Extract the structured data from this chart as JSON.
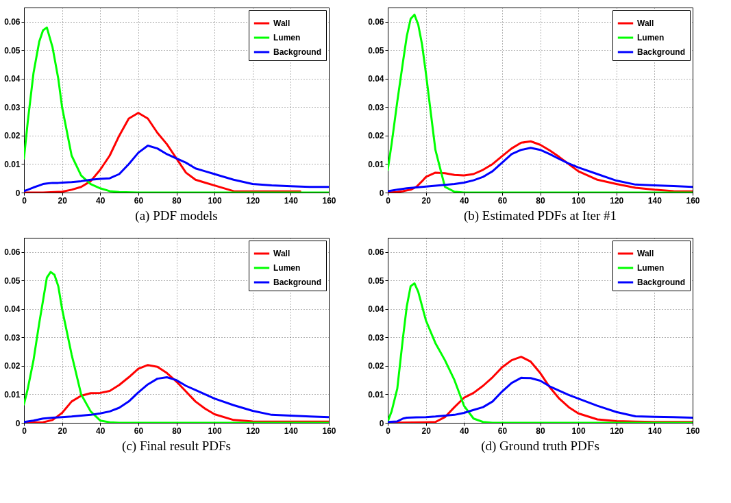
{
  "chart_data": [
    {
      "type": "line",
      "title": "(a) PDF models",
      "xlim": [
        0,
        160
      ],
      "xticks": [
        0,
        20,
        40,
        60,
        80,
        100,
        120,
        140,
        160
      ],
      "ylim": [
        0,
        0.065
      ],
      "yticks": [
        0,
        0.01,
        0.02,
        0.03,
        0.04,
        0.05,
        0.06
      ],
      "grid": true,
      "legend": "top right",
      "line_style": "solid",
      "marker": "none",
      "series": [
        {
          "name": "Wall",
          "color": "#ff0000",
          "x": [
            0,
            10,
            20,
            25,
            30,
            35,
            40,
            45,
            50,
            55,
            60,
            65,
            70,
            75,
            80,
            85,
            90,
            95,
            100,
            110,
            120,
            130,
            140,
            145
          ],
          "values": [
            0,
            0,
            0.0003,
            0.001,
            0.002,
            0.004,
            0.008,
            0.013,
            0.02,
            0.026,
            0.028,
            0.026,
            0.021,
            0.017,
            0.012,
            0.007,
            0.0045,
            0.0035,
            0.0025,
            0.0005,
            0.0004,
            0.0004,
            0.0004,
            0.0004
          ]
        },
        {
          "name": "Lumen",
          "color": "#00ff00",
          "x": [
            0,
            2,
            5,
            8,
            10,
            12,
            15,
            18,
            20,
            25,
            30,
            35,
            40,
            45,
            50,
            60,
            80,
            100,
            120,
            140,
            160
          ],
          "values": [
            0.012,
            0.025,
            0.042,
            0.053,
            0.057,
            0.058,
            0.051,
            0.04,
            0.03,
            0.013,
            0.006,
            0.003,
            0.0015,
            0.0005,
            0.0002,
            0,
            0,
            0,
            0,
            0,
            0
          ]
        },
        {
          "name": "Background",
          "color": "#0000ff",
          "x": [
            0,
            2,
            5,
            8,
            10,
            12,
            15,
            18,
            20,
            25,
            30,
            35,
            40,
            45,
            50,
            55,
            60,
            65,
            70,
            75,
            80,
            85,
            90,
            95,
            100,
            110,
            120,
            130,
            140,
            150,
            160
          ],
          "values": [
            0.0005,
            0.001,
            0.0018,
            0.0025,
            0.003,
            0.0032,
            0.0034,
            0.0034,
            0.0035,
            0.0037,
            0.004,
            0.0045,
            0.0048,
            0.005,
            0.0065,
            0.01,
            0.014,
            0.0165,
            0.0155,
            0.0135,
            0.012,
            0.0105,
            0.0085,
            0.0075,
            0.0065,
            0.0045,
            0.003,
            0.0025,
            0.0022,
            0.002,
            0.002
          ]
        }
      ]
    },
    {
      "type": "line",
      "title": "(b) Estimated PDFs at Iter #1",
      "xlim": [
        0,
        160
      ],
      "xticks": [
        0,
        20,
        40,
        60,
        80,
        100,
        120,
        140,
        160
      ],
      "ylim": [
        0,
        0.065
      ],
      "yticks": [
        0,
        0.01,
        0.02,
        0.03,
        0.04,
        0.05,
        0.06
      ],
      "grid": true,
      "legend": "top right",
      "line_style": "solid",
      "marker": "none",
      "series": [
        {
          "name": "Wall",
          "color": "#ff0000",
          "x": [
            0,
            5,
            8,
            10,
            12,
            15,
            18,
            20,
            25,
            30,
            35,
            40,
            45,
            50,
            55,
            60,
            65,
            70,
            75,
            80,
            85,
            90,
            95,
            100,
            110,
            120,
            130,
            140,
            150,
            160
          ],
          "values": [
            0,
            0.0002,
            0.0005,
            0.0008,
            0.001,
            0.002,
            0.004,
            0.0055,
            0.007,
            0.0068,
            0.0062,
            0.006,
            0.0065,
            0.008,
            0.01,
            0.0128,
            0.0155,
            0.0175,
            0.018,
            0.0168,
            0.0148,
            0.0125,
            0.01,
            0.0075,
            0.0045,
            0.003,
            0.0017,
            0.001,
            0.0005,
            0.0004
          ]
        },
        {
          "name": "Lumen",
          "color": "#00ff00",
          "x": [
            0,
            2,
            5,
            8,
            10,
            12,
            14,
            16,
            18,
            20,
            25,
            30,
            35,
            40,
            60,
            80,
            100,
            120,
            140,
            160
          ],
          "values": [
            0.008,
            0.017,
            0.032,
            0.046,
            0.055,
            0.061,
            0.0625,
            0.059,
            0.052,
            0.042,
            0.015,
            0.002,
            0.0003,
            0,
            0,
            0,
            0,
            0,
            0,
            0
          ]
        },
        {
          "name": "Background",
          "color": "#0000ff",
          "x": [
            0,
            5,
            10,
            15,
            20,
            25,
            30,
            35,
            40,
            45,
            50,
            55,
            60,
            65,
            70,
            75,
            80,
            85,
            90,
            95,
            100,
            110,
            120,
            130,
            140,
            150,
            160
          ],
          "values": [
            0.0005,
            0.001,
            0.0015,
            0.0018,
            0.0021,
            0.0024,
            0.0027,
            0.003,
            0.0035,
            0.0043,
            0.0055,
            0.0075,
            0.0105,
            0.0135,
            0.015,
            0.0157,
            0.015,
            0.0135,
            0.0118,
            0.0102,
            0.0088,
            0.0065,
            0.0042,
            0.0028,
            0.0025,
            0.0023,
            0.002
          ]
        }
      ]
    },
    {
      "type": "line",
      "title": "(c) Final result PDFs",
      "xlim": [
        0,
        160
      ],
      "xticks": [
        0,
        20,
        40,
        60,
        80,
        100,
        120,
        140,
        160
      ],
      "ylim": [
        0,
        0.065
      ],
      "yticks": [
        0,
        0.01,
        0.02,
        0.03,
        0.04,
        0.05,
        0.06
      ],
      "grid": true,
      "legend": "top right",
      "line_style": "solid",
      "marker": "none",
      "series": [
        {
          "name": "Wall",
          "color": "#ff0000",
          "x": [
            0,
            10,
            15,
            18,
            20,
            25,
            30,
            35,
            40,
            45,
            50,
            55,
            60,
            65,
            70,
            75,
            80,
            85,
            90,
            95,
            100,
            110,
            120,
            130,
            140,
            150,
            160
          ],
          "values": [
            0,
            0.0002,
            0.001,
            0.0025,
            0.0035,
            0.0075,
            0.0095,
            0.0104,
            0.0105,
            0.0112,
            0.0133,
            0.016,
            0.019,
            0.0203,
            0.0197,
            0.0175,
            0.0145,
            0.011,
            0.0075,
            0.005,
            0.003,
            0.001,
            0.0005,
            0.0004,
            0.0004,
            0.0004,
            0.0004
          ]
        },
        {
          "name": "Lumen",
          "color": "#00ff00",
          "x": [
            0,
            2,
            5,
            8,
            10,
            12,
            14,
            16,
            18,
            20,
            25,
            30,
            35,
            40,
            45,
            50,
            60,
            80,
            100,
            120,
            140,
            160
          ],
          "values": [
            0.0065,
            0.012,
            0.022,
            0.035,
            0.043,
            0.051,
            0.053,
            0.052,
            0.048,
            0.04,
            0.024,
            0.01,
            0.004,
            0.0008,
            0.0002,
            0,
            0,
            0,
            0,
            0,
            0,
            0
          ]
        },
        {
          "name": "Background",
          "color": "#0000ff",
          "x": [
            0,
            5,
            10,
            15,
            20,
            25,
            30,
            35,
            40,
            45,
            50,
            55,
            60,
            65,
            70,
            75,
            80,
            85,
            90,
            95,
            100,
            110,
            120,
            130,
            140,
            150,
            160
          ],
          "values": [
            0.0003,
            0.0008,
            0.0015,
            0.0018,
            0.002,
            0.0022,
            0.0025,
            0.0028,
            0.0033,
            0.004,
            0.0053,
            0.0075,
            0.0107,
            0.0135,
            0.0155,
            0.016,
            0.015,
            0.013,
            0.0115,
            0.01,
            0.0085,
            0.0062,
            0.0042,
            0.0028,
            0.0025,
            0.0022,
            0.002
          ]
        }
      ]
    },
    {
      "type": "line",
      "title": "(d) Ground truth PDFs",
      "xlim": [
        0,
        160
      ],
      "xticks": [
        0,
        20,
        40,
        60,
        80,
        100,
        120,
        140,
        160
      ],
      "ylim": [
        0,
        0.065
      ],
      "yticks": [
        0,
        0.01,
        0.02,
        0.03,
        0.04,
        0.05,
        0.06
      ],
      "grid": true,
      "legend": "top right",
      "line_style": "solid",
      "marker": "none",
      "series": [
        {
          "name": "Wall",
          "color": "#ff0000",
          "x": [
            0,
            20,
            25,
            30,
            35,
            40,
            45,
            50,
            55,
            60,
            65,
            70,
            75,
            80,
            85,
            90,
            95,
            100,
            110,
            120,
            130,
            140,
            150,
            160
          ],
          "values": [
            0,
            0.0002,
            0.0003,
            0.002,
            0.0055,
            0.0088,
            0.0105,
            0.013,
            0.016,
            0.0195,
            0.022,
            0.0232,
            0.0215,
            0.0175,
            0.0125,
            0.0085,
            0.0055,
            0.0033,
            0.0012,
            0.0006,
            0.0004,
            0.0003,
            0.0003,
            0.0003
          ]
        },
        {
          "name": "Lumen",
          "color": "#00ff00",
          "x": [
            0,
            2,
            5,
            8,
            10,
            12,
            14,
            16,
            18,
            20,
            25,
            30,
            35,
            40,
            45,
            50,
            55,
            80,
            100,
            120,
            140,
            160
          ],
          "values": [
            0.0005,
            0.004,
            0.012,
            0.03,
            0.041,
            0.048,
            0.049,
            0.046,
            0.041,
            0.036,
            0.028,
            0.022,
            0.015,
            0.006,
            0.0015,
            0.0003,
            0,
            0,
            0,
            0,
            0,
            0
          ]
        },
        {
          "name": "Background",
          "color": "#0000ff",
          "x": [
            0,
            5,
            8,
            10,
            15,
            20,
            25,
            30,
            35,
            40,
            45,
            50,
            55,
            60,
            65,
            70,
            75,
            80,
            85,
            90,
            95,
            100,
            110,
            120,
            130,
            140,
            150,
            160
          ],
          "values": [
            0.0003,
            0.0005,
            0.0015,
            0.0018,
            0.0019,
            0.002,
            0.0022,
            0.0025,
            0.0028,
            0.0035,
            0.0045,
            0.0055,
            0.0075,
            0.011,
            0.014,
            0.0158,
            0.0157,
            0.0148,
            0.0128,
            0.0113,
            0.0098,
            0.0085,
            0.006,
            0.0038,
            0.0023,
            0.0021,
            0.002,
            0.0018
          ]
        }
      ]
    }
  ]
}
